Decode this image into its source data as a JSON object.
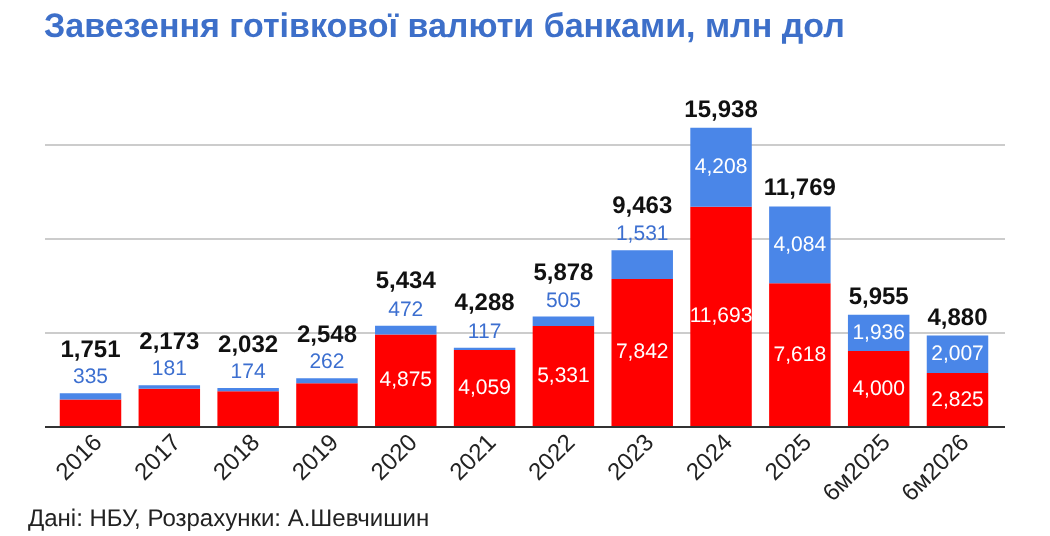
{
  "chart_data": {
    "type": "bar",
    "title": "Завезення готівкової валюти банками, млн дол",
    "stacked": true,
    "categories": [
      "2016",
      "2017",
      "2018",
      "2019",
      "2020",
      "2021",
      "2022",
      "2023",
      "2024",
      "2025",
      "6м2025",
      "6м2026"
    ],
    "series": [
      {
        "color": "#ff0000",
        "values": [
          1416,
          1992,
          1858,
          2286,
          4875,
          4059,
          5331,
          7842,
          11693,
          7618,
          4000,
          2825
        ],
        "value_labels": [
          null,
          null,
          null,
          null,
          "4,875",
          "4,059",
          "5,331",
          "7,842",
          "11,693",
          "7,618",
          "4,000",
          "2,825"
        ]
      },
      {
        "color": "#4a86e8",
        "values": [
          335,
          181,
          174,
          262,
          472,
          117,
          505,
          1531,
          4208,
          4084,
          1936,
          2007
        ],
        "value_labels": [
          "335",
          "181",
          "174",
          "262",
          "472",
          "117",
          "505",
          "1,531",
          "4,208",
          "4,084",
          "1,936",
          "2,007"
        ]
      }
    ],
    "ylim": [
      0,
      16000
    ],
    "yticks": [
      {
        "value": 0,
        "label": null
      },
      {
        "value": 5000,
        "label": null
      },
      {
        "value": 10000,
        "label": null
      },
      {
        "value": 15000,
        "label": null
      }
    ],
    "grid": "y",
    "tick_labels": "x",
    "annotations": [
      {
        "text": "1,751",
        "x": "2016",
        "y": 1751
      },
      {
        "text": "2,173",
        "x": "2017",
        "y": 2173
      },
      {
        "text": "2,032",
        "x": "2018",
        "y": 2032
      },
      {
        "text": "2,548",
        "x": "2019",
        "y": 2548
      },
      {
        "text": "5,434",
        "x": "2020",
        "y": 5434
      },
      {
        "text": "4,288",
        "x": "2021",
        "y": 4288
      },
      {
        "text": "5,878",
        "x": "2022",
        "y": 5878
      },
      {
        "text": "9,463",
        "x": "2023",
        "y": 9463
      },
      {
        "text": "15,938",
        "x": "2024",
        "y": 15938
      },
      {
        "text": "11,769",
        "x": "2025",
        "y": 11769
      },
      {
        "text": "5,955",
        "x": "6м2025",
        "y": 5955
      },
      {
        "text": "4,880",
        "x": "6м2026",
        "y": 4880
      },
      "Дані: НБУ, Розрахунки: А.Шевчишин"
    ]
  }
}
